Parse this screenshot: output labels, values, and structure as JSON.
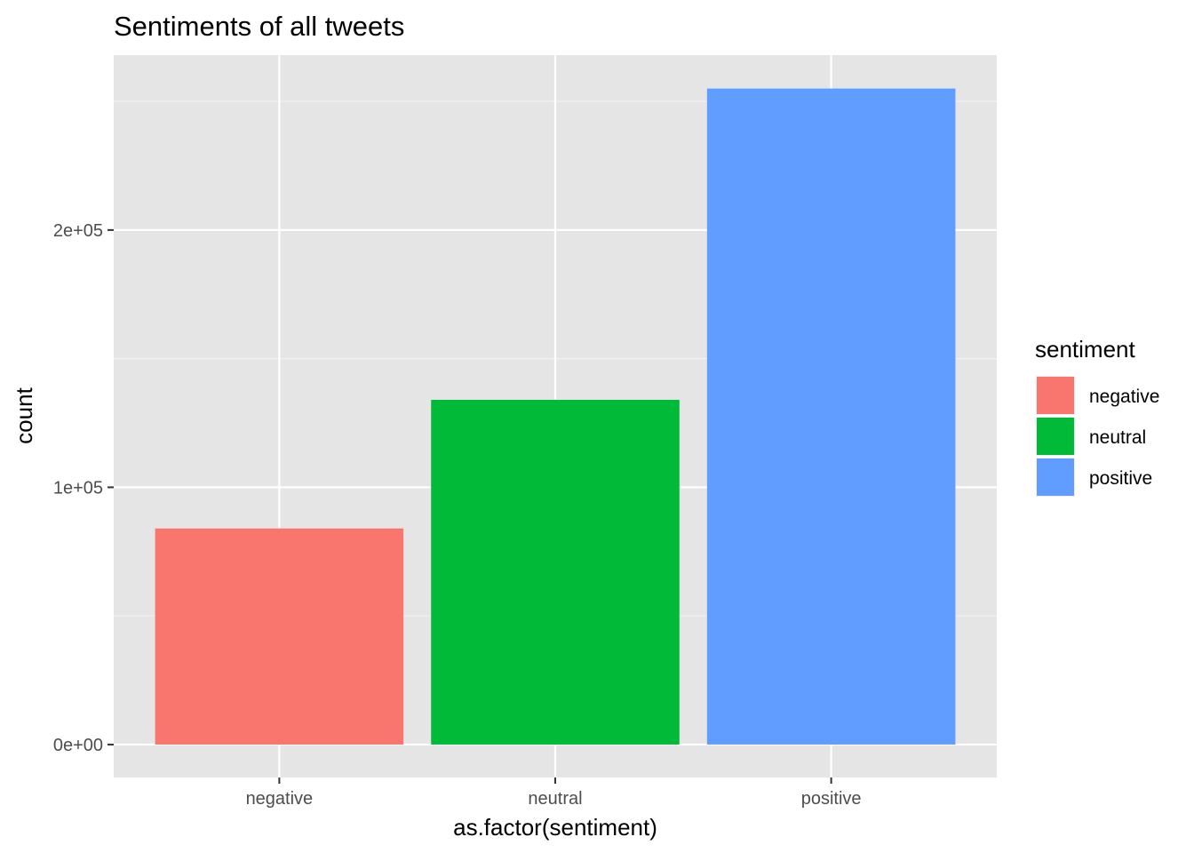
{
  "chart_data": {
    "type": "bar",
    "title": "Sentiments of all tweets",
    "xlabel": "as.factor(sentiment)",
    "ylabel": "count",
    "categories": [
      "negative",
      "neutral",
      "positive"
    ],
    "values": [
      84000,
      134000,
      255000
    ],
    "colors": [
      "#F8766D",
      "#00BA38",
      "#619CFF"
    ],
    "ylim": [
      -12800,
      268000
    ],
    "yticks": [
      {
        "value": 0,
        "label": "0e+00"
      },
      {
        "value": 100000,
        "label": "1e+05"
      },
      {
        "value": 200000,
        "label": "2e+05"
      }
    ],
    "yminor": [
      50000,
      150000,
      250000
    ],
    "grid": true,
    "panel_background": "#E5E5E5",
    "legend": {
      "title": "sentiment",
      "position": "right",
      "items": [
        "negative",
        "neutral",
        "positive"
      ]
    }
  }
}
